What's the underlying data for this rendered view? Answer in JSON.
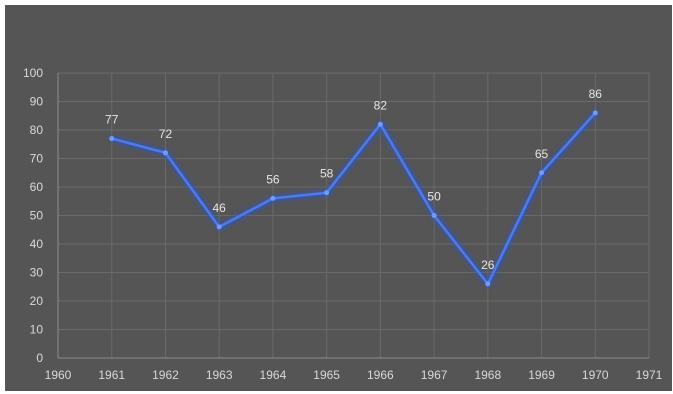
{
  "chart_data": {
    "type": "line",
    "title": "",
    "xlabel": "",
    "ylabel": "",
    "x": [
      1961,
      1962,
      1963,
      1964,
      1965,
      1966,
      1967,
      1968,
      1969,
      1970
    ],
    "series": [
      {
        "values": [
          77,
          72,
          46,
          56,
          58,
          82,
          50,
          26,
          65,
          86
        ]
      }
    ],
    "xlim": [
      1960,
      1971
    ],
    "ylim": [
      0,
      100
    ],
    "x_ticks": [
      "1960",
      "1961",
      "1962",
      "1963",
      "1964",
      "1965",
      "1966",
      "1967",
      "1968",
      "1969",
      "1970",
      "1971"
    ],
    "y_ticks": [
      "0",
      "10",
      "20",
      "30",
      "40",
      "50",
      "60",
      "70",
      "80",
      "90",
      "100"
    ],
    "data_labels": [
      "77",
      "72",
      "46",
      "56",
      "58",
      "82",
      "50",
      "26",
      "65",
      "86"
    ],
    "grid": true,
    "legend": "none",
    "colors": {
      "background": "#555555",
      "gridline": "#6a6a6a",
      "axis": "#8c8c8c",
      "line": "#4a7cf0",
      "glow": "#2f55c8",
      "marker": "#6f9bff",
      "text": "#d9d9d9"
    }
  }
}
